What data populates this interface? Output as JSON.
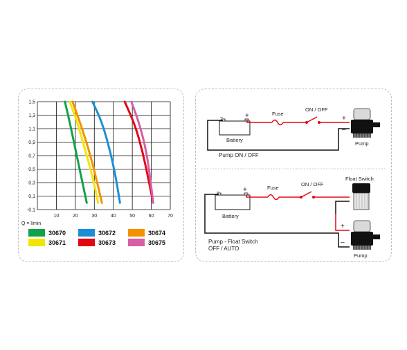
{
  "chart_data": {
    "type": "line",
    "xlabel": "Q = l/min",
    "ylabel": "",
    "xlim": [
      0,
      70
    ],
    "ylim": [
      -0.1,
      1.5
    ],
    "x_ticks": [
      "10",
      "20",
      "30",
      "40",
      "50",
      "60",
      "70"
    ],
    "y_ticks": [
      "1,5",
      "1,3",
      "1,1",
      "0,9",
      "0,7",
      "0,5",
      "0,3",
      "0,1",
      "-0,1"
    ],
    "series": [
      {
        "name": "30670",
        "color": "#12a14b",
        "x": [
          14.5,
          17,
          20,
          23,
          26
        ],
        "y": [
          1.5,
          1.2,
          0.8,
          0.4,
          0.0
        ]
      },
      {
        "name": "30671",
        "color": "#f2e600",
        "x": [
          17,
          21,
          25,
          29,
          32
        ],
        "y": [
          1.5,
          1.2,
          0.8,
          0.4,
          0.0
        ]
      },
      {
        "name": "30674",
        "color": "#f39200",
        "x": [
          18.5,
          23,
          28,
          31.5,
          34
        ],
        "y": [
          1.5,
          1.15,
          0.7,
          0.3,
          0.0
        ]
      },
      {
        "name": "30672",
        "color": "#1b8fd6",
        "x": [
          29,
          34,
          38.5,
          41.5,
          43.5
        ],
        "y": [
          1.5,
          1.2,
          0.75,
          0.35,
          0.0
        ]
      },
      {
        "name": "30673",
        "color": "#e30613",
        "x": [
          46,
          51.5,
          55.5,
          58.5,
          61
        ],
        "y": [
          1.5,
          1.15,
          0.75,
          0.35,
          0.0
        ]
      },
      {
        "name": "30675",
        "color": "#d65fa8",
        "x": [
          49.5,
          54,
          57.5,
          59.5,
          61
        ],
        "y": [
          1.5,
          1.15,
          0.75,
          0.35,
          0.0
        ]
      }
    ],
    "legend": [
      {
        "name": "30670",
        "color": "#12a14b"
      },
      {
        "name": "30672",
        "color": "#1b8fd6"
      },
      {
        "name": "30674",
        "color": "#f39200"
      },
      {
        "name": "30671",
        "color": "#f2e600"
      },
      {
        "name": "30673",
        "color": "#e30613"
      },
      {
        "name": "30675",
        "color": "#d65fa8"
      }
    ],
    "grid": true,
    "legend_placement": "bottom"
  },
  "diagram_top": {
    "fuse": "Fuse",
    "switch": "ON / OFF",
    "battery": "Battery",
    "pump": "Pump",
    "minus_batt": "–",
    "plus_batt": "+",
    "minus_pump": "–",
    "plus_pump": "+",
    "caption": "Pump ON / OFF"
  },
  "diagram_bottom": {
    "fuse": "Fuse",
    "switch": "ON / OFF",
    "battery": "Battery",
    "float_switch": "Float Switch",
    "pump": "Pump",
    "minus_batt": "–",
    "plus_batt": "+",
    "minus_pump": "–",
    "plus_pump": "+",
    "caption_line1": "Pump - Float Switch",
    "caption_line2": "OFF / AUTO"
  },
  "colors": {
    "wire_black": "#111111",
    "wire_red": "#e30613"
  }
}
